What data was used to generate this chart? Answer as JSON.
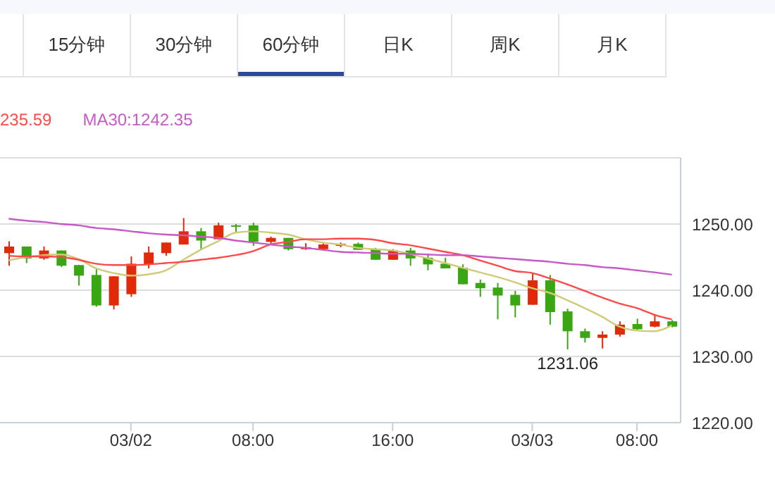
{
  "chart_data": {
    "type": "candlestick",
    "categories": [
      null,
      null,
      null,
      null,
      null,
      null,
      null,
      "03/02",
      null,
      null,
      null,
      null,
      null,
      null,
      "08:00",
      null,
      null,
      null,
      null,
      null,
      null,
      null,
      "16:00",
      null,
      null,
      null,
      null,
      null,
      null,
      null,
      "03/03",
      null,
      null,
      null,
      null,
      null,
      "08:00",
      null,
      null
    ],
    "ohlc": [
      [
        1245.6,
        1247.4,
        1243.7,
        1246.6
      ],
      [
        1246.6,
        1246.6,
        1244.1,
        1244.8
      ],
      [
        1244.8,
        1246.6,
        1244.6,
        1246.0
      ],
      [
        1246.0,
        1246.0,
        1243.5,
        1243.7
      ],
      [
        1243.8,
        1243.8,
        1240.7,
        1242.2
      ],
      [
        1242.3,
        1243.3,
        1237.5,
        1237.7
      ],
      [
        1237.7,
        1242.1,
        1237.1,
        1242.1
      ],
      [
        1239.4,
        1245.1,
        1239.0,
        1244.0
      ],
      [
        1243.9,
        1246.6,
        1243.3,
        1245.7
      ],
      [
        1245.6,
        1247.2,
        1245.2,
        1247.2
      ],
      [
        1246.9,
        1250.9,
        1246.9,
        1248.9
      ],
      [
        1248.9,
        1249.4,
        1246.2,
        1247.5
      ],
      [
        1247.7,
        1250.2,
        1247.7,
        1249.8
      ],
      [
        1249.8,
        1250.0,
        1248.8,
        1249.6
      ],
      [
        1249.8,
        1250.2,
        1246.7,
        1247.3
      ],
      [
        1247.3,
        1248.1,
        1246.9,
        1247.9
      ],
      [
        1247.9,
        1247.9,
        1246.0,
        1246.2
      ],
      [
        1246.2,
        1247.1,
        1246.1,
        1246.5
      ],
      [
        1246.2,
        1247.1,
        1246.0,
        1246.9
      ],
      [
        1246.7,
        1247.2,
        1246.5,
        1247.0
      ],
      [
        1247.0,
        1247.2,
        1246.1,
        1246.1
      ],
      [
        1246.2,
        1246.4,
        1244.6,
        1244.6
      ],
      [
        1244.6,
        1246.2,
        1244.6,
        1246.0
      ],
      [
        1246.0,
        1246.4,
        1243.7,
        1244.8
      ],
      [
        1244.9,
        1245.5,
        1243.0,
        1243.9
      ],
      [
        1244.0,
        1244.9,
        1243.3,
        1243.3
      ],
      [
        1243.4,
        1243.9,
        1240.9,
        1240.9
      ],
      [
        1241.1,
        1241.6,
        1239.0,
        1240.3
      ],
      [
        1240.4,
        1241.1,
        1235.6,
        1239.2
      ],
      [
        1239.3,
        1239.9,
        1235.9,
        1237.7
      ],
      [
        1237.8,
        1242.6,
        1237.8,
        1241.5
      ],
      [
        1241.5,
        1242.3,
        1234.8,
        1236.7
      ],
      [
        1236.8,
        1237.2,
        1231.06,
        1233.8
      ],
      [
        1233.8,
        1234.2,
        1232.1,
        1232.8
      ],
      [
        1232.8,
        1233.8,
        1231.2,
        1233.3
      ],
      [
        1233.3,
        1235.3,
        1233.0,
        1234.8
      ],
      [
        1234.9,
        1235.7,
        1234.0,
        1234.1
      ],
      [
        1234.5,
        1236.3,
        1234.4,
        1235.3
      ],
      [
        1235.3,
        1235.5,
        1234.4,
        1234.5
      ]
    ],
    "colors": [
      "#e02a0a",
      "#3aa613",
      "#e02a0a",
      "#3aa613",
      "#3aa613",
      "#3aa613",
      "#e02a0a",
      "#e02a0a",
      "#e02a0a",
      "#e02a0a",
      "#e02a0a",
      "#3aa613",
      "#e02a0a",
      "#3aa613",
      "#3aa613",
      "#e02a0a",
      "#3aa613",
      "#e02a0a",
      "#e02a0a",
      "#e02a0a",
      "#3aa613",
      "#3aa613",
      "#e02a0a",
      "#3aa613",
      "#3aa613",
      "#3aa613",
      "#3aa613",
      "#3aa613",
      "#3aa613",
      "#3aa613",
      "#e02a0a",
      "#3aa613",
      "#3aa613",
      "#3aa613",
      "#e02a0a",
      "#e02a0a",
      "#3aa613",
      "#e02a0a",
      "#3aa613"
    ],
    "series": [
      {
        "type": "line",
        "color": "#cfcb78",
        "values": [
          1244.5,
          1245.0,
          1245.3,
          1245.4,
          1244.7,
          1243.3,
          1242.6,
          1242.2,
          1242.4,
          1243.0,
          1244.6,
          1246.1,
          1247.4,
          1248.7,
          1248.9,
          1248.7,
          1248.4,
          1247.7,
          1247.2,
          1246.9,
          1246.4,
          1246.2,
          1246.0,
          1245.5,
          1244.8,
          1244.1,
          1243.4,
          1242.7,
          1242.0,
          1241.2,
          1240.3,
          1239.6,
          1238.5,
          1237.3,
          1236.0,
          1234.5,
          1233.9,
          1233.8,
          1234.7
        ]
      },
      {
        "type": "line",
        "name": "235.59",
        "color": "#ff4a4a",
        "values": [
          1245.2,
          1245.1,
          1245.1,
          1245.0,
          1244.6,
          1244.0,
          1243.8,
          1243.8,
          1243.9,
          1244.1,
          1244.3,
          1244.6,
          1244.9,
          1245.3,
          1245.9,
          1246.9,
          1247.3,
          1247.7,
          1247.7,
          1247.8,
          1247.8,
          1247.6,
          1247.1,
          1246.8,
          1246.3,
          1245.8,
          1245.3,
          1244.5,
          1243.7,
          1242.9,
          1242.6,
          1241.8,
          1240.9,
          1239.9,
          1238.9,
          1238.0,
          1237.3,
          1236.3,
          1235.59
        ]
      },
      {
        "type": "line",
        "name": "MA30:1242.35",
        "color": "#c659c6",
        "values": [
          1250.8,
          1250.5,
          1250.3,
          1250.0,
          1249.8,
          1249.4,
          1249.2,
          1248.9,
          1248.6,
          1248.4,
          1248.3,
          1248.1,
          1247.9,
          1247.5,
          1247.2,
          1246.9,
          1246.6,
          1246.4,
          1246.1,
          1245.8,
          1245.7,
          1245.6,
          1245.5,
          1245.5,
          1245.4,
          1245.3,
          1245.3,
          1245.1,
          1244.9,
          1244.7,
          1244.5,
          1244.3,
          1244.0,
          1243.8,
          1243.5,
          1243.3,
          1243.0,
          1242.7,
          1242.35
        ]
      }
    ],
    "ylim": [
      1220,
      1260
    ],
    "yticks": [
      {
        "value": 1220,
        "label": "1220.00"
      },
      {
        "value": 1230,
        "label": "1230.00"
      },
      {
        "value": 1240,
        "label": "1240.00"
      },
      {
        "value": 1250,
        "label": "1250.00"
      }
    ],
    "grid": "y",
    "legend": "top left",
    "marker": "none",
    "annotations": [
      "15分钟",
      "30分钟",
      "60分钟",
      "日K",
      "周K",
      "月K",
      {
        "text": "1231.06",
        "y": 1231.06
      }
    ]
  }
}
